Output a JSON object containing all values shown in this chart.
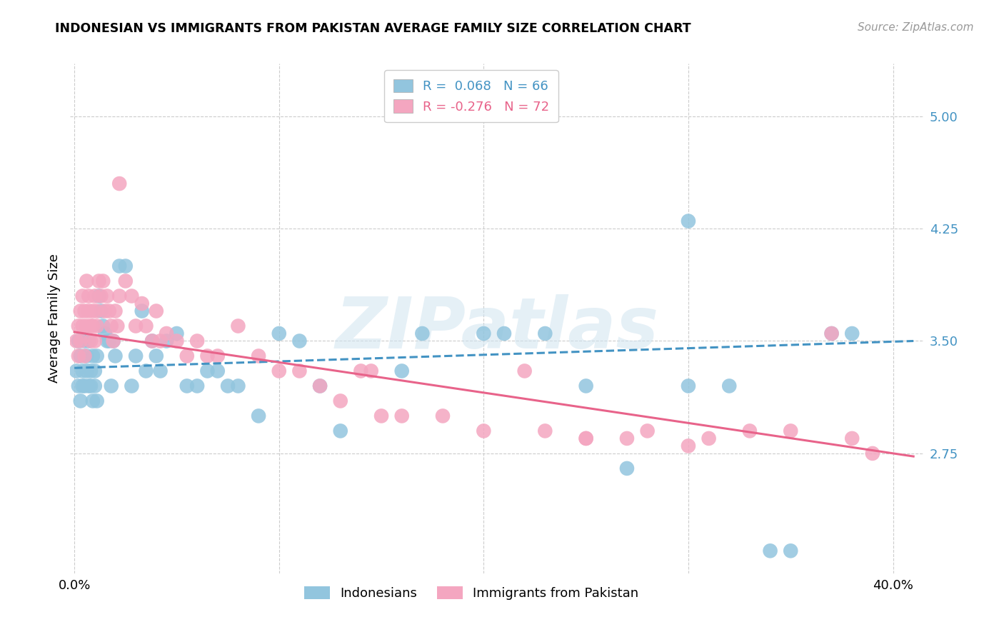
{
  "title": "INDONESIAN VS IMMIGRANTS FROM PAKISTAN AVERAGE FAMILY SIZE CORRELATION CHART",
  "source": "Source: ZipAtlas.com",
  "ylabel": "Average Family Size",
  "watermark": "ZIPatlas",
  "ylim": [
    1.95,
    5.35
  ],
  "xlim": [
    -0.002,
    0.415
  ],
  "yticks": [
    2.75,
    3.5,
    4.25,
    5.0
  ],
  "xticks": [
    0.0,
    0.1,
    0.2,
    0.3,
    0.4
  ],
  "xticklabels": [
    "0.0%",
    "",
    "",
    "",
    "40.0%"
  ],
  "color_blue": "#92c5de",
  "color_pink": "#f4a6c0",
  "line_color_blue": "#4393c3",
  "line_color_pink": "#e8638a",
  "R_blue": 0.068,
  "N_blue": 66,
  "R_pink": -0.276,
  "N_pink": 72,
  "blue_line_x": [
    0.0,
    0.41
  ],
  "blue_line_y": [
    3.32,
    3.5
  ],
  "pink_line_x": [
    0.0,
    0.41
  ],
  "pink_line_y": [
    3.56,
    2.73
  ],
  "ind_x": [
    0.001,
    0.002,
    0.002,
    0.003,
    0.003,
    0.004,
    0.004,
    0.005,
    0.005,
    0.006,
    0.006,
    0.007,
    0.007,
    0.008,
    0.008,
    0.009,
    0.009,
    0.01,
    0.01,
    0.011,
    0.011,
    0.012,
    0.013,
    0.014,
    0.015,
    0.016,
    0.017,
    0.018,
    0.019,
    0.02,
    0.022,
    0.025,
    0.028,
    0.03,
    0.033,
    0.035,
    0.038,
    0.04,
    0.042,
    0.045,
    0.05,
    0.055,
    0.06,
    0.065,
    0.07,
    0.075,
    0.08,
    0.09,
    0.1,
    0.11,
    0.12,
    0.13,
    0.16,
    0.17,
    0.2,
    0.21,
    0.23,
    0.27,
    0.3,
    0.32,
    0.34,
    0.35,
    0.37,
    0.38,
    0.3,
    0.25
  ],
  "ind_y": [
    3.3,
    3.2,
    3.5,
    3.4,
    3.1,
    3.3,
    3.2,
    3.5,
    3.2,
    3.3,
    3.4,
    3.2,
    3.5,
    3.3,
    3.2,
    3.1,
    3.4,
    3.3,
    3.2,
    3.4,
    3.1,
    3.8,
    3.7,
    3.6,
    3.55,
    3.5,
    3.5,
    3.2,
    3.5,
    3.4,
    4.0,
    4.0,
    3.2,
    3.4,
    3.7,
    3.3,
    3.5,
    3.4,
    3.3,
    3.5,
    3.55,
    3.2,
    3.2,
    3.3,
    3.3,
    3.2,
    3.2,
    3.0,
    3.55,
    3.5,
    3.2,
    2.9,
    3.3,
    3.55,
    3.55,
    3.55,
    3.55,
    2.65,
    3.2,
    3.2,
    2.1,
    2.1,
    3.55,
    3.55,
    4.3,
    3.2
  ],
  "pak_x": [
    0.001,
    0.002,
    0.002,
    0.003,
    0.003,
    0.004,
    0.004,
    0.005,
    0.005,
    0.006,
    0.006,
    0.007,
    0.007,
    0.008,
    0.008,
    0.009,
    0.009,
    0.01,
    0.01,
    0.011,
    0.011,
    0.012,
    0.013,
    0.014,
    0.015,
    0.016,
    0.017,
    0.018,
    0.019,
    0.02,
    0.021,
    0.022,
    0.025,
    0.028,
    0.03,
    0.033,
    0.035,
    0.038,
    0.04,
    0.042,
    0.045,
    0.05,
    0.055,
    0.06,
    0.065,
    0.07,
    0.08,
    0.09,
    0.1,
    0.11,
    0.12,
    0.13,
    0.15,
    0.16,
    0.18,
    0.2,
    0.22,
    0.23,
    0.25,
    0.27,
    0.28,
    0.3,
    0.31,
    0.33,
    0.35,
    0.37,
    0.38,
    0.39,
    0.14,
    0.145,
    0.022,
    0.25
  ],
  "pak_y": [
    3.5,
    3.6,
    3.4,
    3.7,
    3.5,
    3.8,
    3.6,
    3.7,
    3.4,
    3.9,
    3.6,
    3.8,
    3.7,
    3.6,
    3.5,
    3.7,
    3.6,
    3.8,
    3.5,
    3.7,
    3.6,
    3.9,
    3.8,
    3.9,
    3.7,
    3.8,
    3.7,
    3.6,
    3.5,
    3.7,
    3.6,
    3.8,
    3.9,
    3.8,
    3.6,
    3.75,
    3.6,
    3.5,
    3.7,
    3.5,
    3.55,
    3.5,
    3.4,
    3.5,
    3.4,
    3.4,
    3.6,
    3.4,
    3.3,
    3.3,
    3.2,
    3.1,
    3.0,
    3.0,
    3.0,
    2.9,
    3.3,
    2.9,
    2.85,
    2.85,
    2.9,
    2.8,
    2.85,
    2.9,
    2.9,
    3.55,
    2.85,
    2.75,
    3.3,
    3.3,
    4.55,
    2.85
  ]
}
